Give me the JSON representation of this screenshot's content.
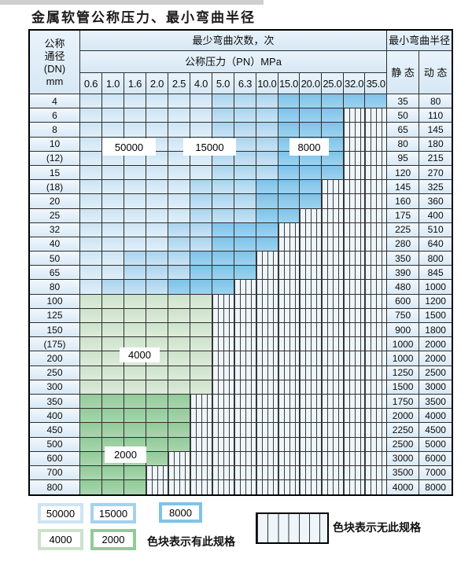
{
  "page": {
    "title": "金属软管公称压力、最小弯曲半径"
  },
  "table": {
    "corner_lines": [
      "公称",
      "通径",
      "(DN)",
      "mm"
    ],
    "bend_header": "最少弯曲次数，次",
    "pressure_header": "公称压力（PN）MPa",
    "pressure_cols": [
      "0.6",
      "1.0",
      "1.6",
      "2.0",
      "2.5",
      "4.0",
      "5.0",
      "6.3",
      "10.0",
      "15.0",
      "20.0",
      "25.0",
      "32.0",
      "35.0"
    ],
    "radius_header": "最小弯曲半径",
    "static_label": "静 态",
    "dynamic_label": "动 态",
    "rows": [
      {
        "dn": "4",
        "static": "35",
        "dynamic": "80",
        "colored": 14,
        "med": 6,
        "dark": 9,
        "palette": "blue"
      },
      {
        "dn": "6",
        "static": "50",
        "dynamic": "110",
        "colored": 12,
        "med": 6,
        "dark": 9,
        "palette": "blue"
      },
      {
        "dn": "8",
        "static": "65",
        "dynamic": "145",
        "colored": 12,
        "med": 6,
        "dark": 9,
        "palette": "blue"
      },
      {
        "dn": "10",
        "static": "80",
        "dynamic": "180",
        "colored": 12,
        "med": 6,
        "dark": 9,
        "palette": "blue"
      },
      {
        "dn": "(12)",
        "static": "95",
        "dynamic": "215",
        "colored": 12,
        "med": 6,
        "dark": 9,
        "palette": "blue"
      },
      {
        "dn": "15",
        "static": "120",
        "dynamic": "270",
        "colored": 12,
        "med": 6,
        "dark": 9,
        "palette": "blue"
      },
      {
        "dn": "(18)",
        "static": "145",
        "dynamic": "325",
        "colored": 11,
        "med": 5,
        "dark": 8,
        "palette": "blue"
      },
      {
        "dn": "20",
        "static": "160",
        "dynamic": "360",
        "colored": 11,
        "med": 5,
        "dark": 8,
        "palette": "blue"
      },
      {
        "dn": "25",
        "static": "175",
        "dynamic": "400",
        "colored": 10,
        "med": 5,
        "dark": 8,
        "palette": "blue"
      },
      {
        "dn": "32",
        "static": "225",
        "dynamic": "510",
        "colored": 9,
        "med": 4,
        "dark": 6,
        "palette": "blue"
      },
      {
        "dn": "40",
        "static": "280",
        "dynamic": "640",
        "colored": 9,
        "med": 4,
        "dark": 6,
        "palette": "blue"
      },
      {
        "dn": "50",
        "static": "350",
        "dynamic": "800",
        "colored": 8,
        "med": 2,
        "dark": 5,
        "palette": "blue"
      },
      {
        "dn": "65",
        "static": "390",
        "dynamic": "845",
        "colored": 8,
        "med": 2,
        "dark": 5,
        "palette": "blue"
      },
      {
        "dn": "80",
        "static": "480",
        "dynamic": "1000",
        "colored": 7,
        "med": 1,
        "dark": 4,
        "palette": "blue"
      },
      {
        "dn": "100",
        "static": "600",
        "dynamic": "1200",
        "colored": 6,
        "palette": "green_light"
      },
      {
        "dn": "125",
        "static": "750",
        "dynamic": "1500",
        "colored": 6,
        "palette": "green_light"
      },
      {
        "dn": "150",
        "static": "900",
        "dynamic": "1800",
        "colored": 6,
        "palette": "green_light"
      },
      {
        "dn": "(175)",
        "static": "1000",
        "dynamic": "2000",
        "colored": 6,
        "palette": "green_light"
      },
      {
        "dn": "200",
        "static": "1000",
        "dynamic": "2000",
        "colored": 6,
        "palette": "green_light"
      },
      {
        "dn": "250",
        "static": "1250",
        "dynamic": "2500",
        "colored": 6,
        "palette": "green_light"
      },
      {
        "dn": "300",
        "static": "1500",
        "dynamic": "3000",
        "colored": 6,
        "palette": "green_light"
      },
      {
        "dn": "350",
        "static": "1750",
        "dynamic": "3500",
        "colored": 5,
        "palette": "green_dark"
      },
      {
        "dn": "400",
        "static": "2000",
        "dynamic": "4000",
        "colored": 5,
        "palette": "green_dark"
      },
      {
        "dn": "450",
        "static": "2250",
        "dynamic": "4500",
        "colored": 5,
        "palette": "green_dark"
      },
      {
        "dn": "500",
        "static": "2500",
        "dynamic": "5000",
        "colored": 5,
        "palette": "green_dark"
      },
      {
        "dn": "600",
        "static": "3000",
        "dynamic": "6000",
        "colored": 4,
        "palette": "green_dark"
      },
      {
        "dn": "700",
        "static": "3500",
        "dynamic": "7000",
        "colored": 3,
        "palette": "green_dark"
      },
      {
        "dn": "800",
        "static": "4000",
        "dynamic": "8000",
        "colored": 3,
        "palette": "green_dark"
      }
    ],
    "overlay_labels": [
      {
        "text": "50000"
      },
      {
        "text": "15000"
      },
      {
        "text": "8000"
      },
      {
        "text": "4000"
      },
      {
        "text": "2000"
      }
    ]
  },
  "legend": {
    "chips": [
      {
        "label": "50000",
        "palette": "blue_light"
      },
      {
        "label": "15000",
        "palette": "blue_medium"
      },
      {
        "label": "8000",
        "palette": "blue_dark"
      },
      {
        "label": "4000",
        "palette": "green_light"
      },
      {
        "label": "2000",
        "palette": "green_dark"
      }
    ],
    "has_spec_text": "色块表示有此规格",
    "no_spec_text": "色块表示无此规格"
  },
  "colors": {
    "blue_light": "#cde4f4",
    "blue_medium": "#a6d1ed",
    "blue_dark": "#7ec3e9",
    "green_light": "#cde2cb",
    "green_dark": "#92cb99",
    "hatch_bg": "#eef5fb",
    "grid_line": "#2e2e2e"
  }
}
